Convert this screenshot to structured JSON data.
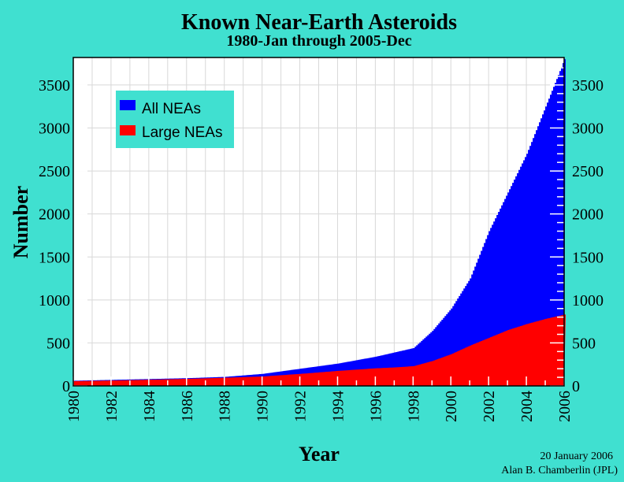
{
  "chart_data": {
    "type": "area",
    "title": "Known Near-Earth Asteroids",
    "subtitle": "1980-Jan through 2005-Dec",
    "xlabel": "Year",
    "ylabel": "Number",
    "xlim": [
      1980,
      2006
    ],
    "ylim": [
      0,
      3820
    ],
    "grid": true,
    "legend_placement": "top-left",
    "x_ticks": [
      "1980",
      "1982",
      "1984",
      "1986",
      "1988",
      "1990",
      "1992",
      "1994",
      "1996",
      "1998",
      "2000",
      "2002",
      "2004",
      "2006"
    ],
    "y_ticks": [
      "0",
      "500",
      "1000",
      "1500",
      "2000",
      "2500",
      "3000",
      "3500"
    ],
    "x": [
      1980,
      1982,
      1984,
      1986,
      1988,
      1990,
      1992,
      1994,
      1996,
      1997,
      1998,
      1999,
      2000,
      2001,
      2002,
      2003,
      2004,
      2005,
      2006
    ],
    "series": [
      {
        "name": "All NEAs",
        "color": "#0000FF",
        "values": [
          60,
          70,
          80,
          90,
          105,
          140,
          200,
          260,
          340,
          390,
          440,
          640,
          900,
          1250,
          1800,
          2250,
          2700,
          3250,
          3800
        ]
      },
      {
        "name": "Large NEAs",
        "color": "#FF0000",
        "values": [
          55,
          62,
          72,
          82,
          95,
          110,
          140,
          175,
          205,
          215,
          230,
          290,
          370,
          470,
          560,
          650,
          720,
          780,
          830
        ]
      }
    ]
  },
  "footer": {
    "date": "20 January 2006",
    "credit": "Alan B. Chamberlin (JPL)"
  }
}
